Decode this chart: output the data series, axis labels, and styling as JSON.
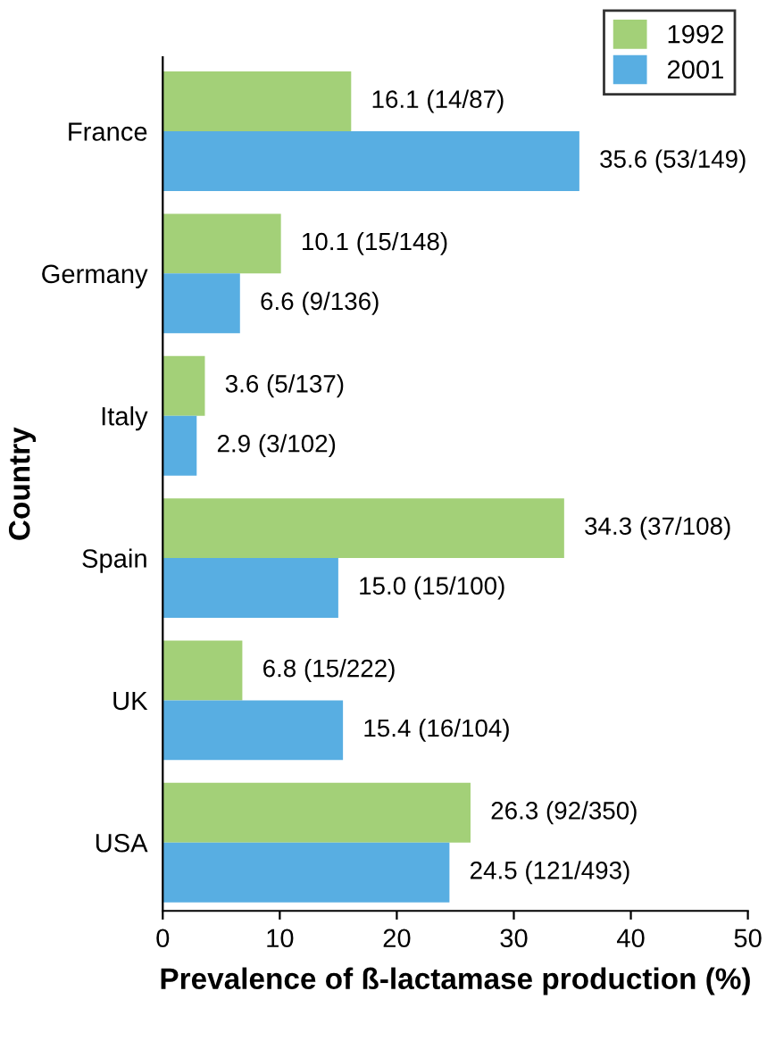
{
  "chart_data": {
    "type": "bar",
    "orientation": "horizontal",
    "xlabel": "Prevalence of ß-lactamase production (%)",
    "ylabel": "Country",
    "categories": [
      "France",
      "Germany",
      "Italy",
      "Spain",
      "UK",
      "USA"
    ],
    "series": [
      {
        "name": "1992",
        "color": "#a3d078",
        "values": [
          16.1,
          10.1,
          3.6,
          34.3,
          6.8,
          26.3
        ],
        "value_labels": [
          "16.1 (14/87)",
          "10.1 (15/148)",
          "3.6 (5/137)",
          "34.3 (37/108)",
          "6.8 (15/222)",
          "26.3 (92/350)"
        ]
      },
      {
        "name": "2001",
        "color": "#58aee2",
        "values": [
          35.6,
          6.6,
          2.9,
          15.0,
          15.4,
          24.5
        ],
        "value_labels": [
          "35.6 (53/149)",
          "6.6 (9/136)",
          "2.9 (3/102)",
          "15.0 (15/100)",
          "15.4 (16/104)",
          "24.5 (121/493)"
        ]
      }
    ],
    "xlim": [
      0,
      50
    ],
    "xticks": [
      0,
      10,
      20,
      30,
      40,
      50
    ],
    "grid": false,
    "legend": "top right"
  }
}
